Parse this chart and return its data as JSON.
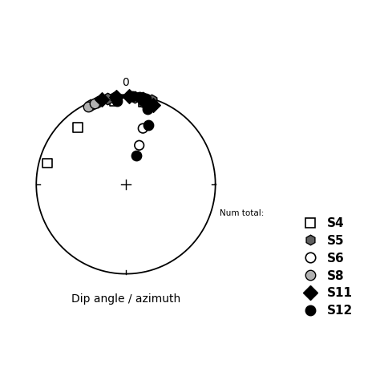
{
  "xlabel": "Dip angle / azimuth",
  "top_label": "0",
  "num_total_text": "Num total:",
  "background_color": "#ffffff",
  "figsize": [
    4.74,
    4.74
  ],
  "dpi": 100,
  "data": {
    "S4": {
      "marker": "s",
      "facecolor": "none",
      "edgecolor": "#000000",
      "size": 70,
      "lw": 1.2,
      "points": [
        [
          80,
          285
        ],
        [
          72,
          320
        ],
        [
          83,
          352
        ],
        [
          83,
          12
        ]
      ]
    },
    "S5": {
      "marker": "h",
      "facecolor": "#606060",
      "edgecolor": "#000000",
      "size": 110,
      "lw": 1.0,
      "points": [
        [
          87,
          336
        ],
        [
          87,
          341
        ],
        [
          88,
          348
        ],
        [
          88,
          353
        ],
        [
          88,
          6
        ],
        [
          88,
          11
        ],
        [
          88,
          17
        ]
      ]
    },
    "S6": {
      "marker": "o",
      "facecolor": "none",
      "edgecolor": "#000000",
      "size": 70,
      "lw": 1.2,
      "points": [
        [
          55,
          17
        ],
        [
          38,
          19
        ],
        [
          87,
          13
        ]
      ]
    },
    "S8": {
      "marker": "o",
      "facecolor": "#b0b0b0",
      "edgecolor": "#000000",
      "size": 80,
      "lw": 1.0,
      "points": [
        [
          86,
          334
        ],
        [
          86,
          339
        ],
        [
          83,
          13
        ],
        [
          81,
          18
        ]
      ]
    },
    "S11": {
      "marker": "D",
      "facecolor": "#000000",
      "edgecolor": "#000000",
      "size": 80,
      "lw": 1.0,
      "points": [
        [
          88,
          344
        ],
        [
          88,
          354
        ],
        [
          88,
          2
        ],
        [
          86,
          11
        ],
        [
          83,
          19
        ]
      ]
    },
    "S12": {
      "marker": "o",
      "facecolor": "#000000",
      "edgecolor": "#000000",
      "size": 80,
      "lw": 1.0,
      "points": [
        [
          83,
          354
        ],
        [
          88,
          4
        ],
        [
          88,
          9
        ],
        [
          88,
          13
        ],
        [
          76,
          16
        ],
        [
          60,
          21
        ],
        [
          28,
          20
        ]
      ]
    }
  },
  "series_order": [
    "S4",
    "S5",
    "S6",
    "S8",
    "S11",
    "S12"
  ],
  "xlim": [
    -1.32,
    1.65
  ],
  "ylim": [
    -1.32,
    1.32
  ]
}
